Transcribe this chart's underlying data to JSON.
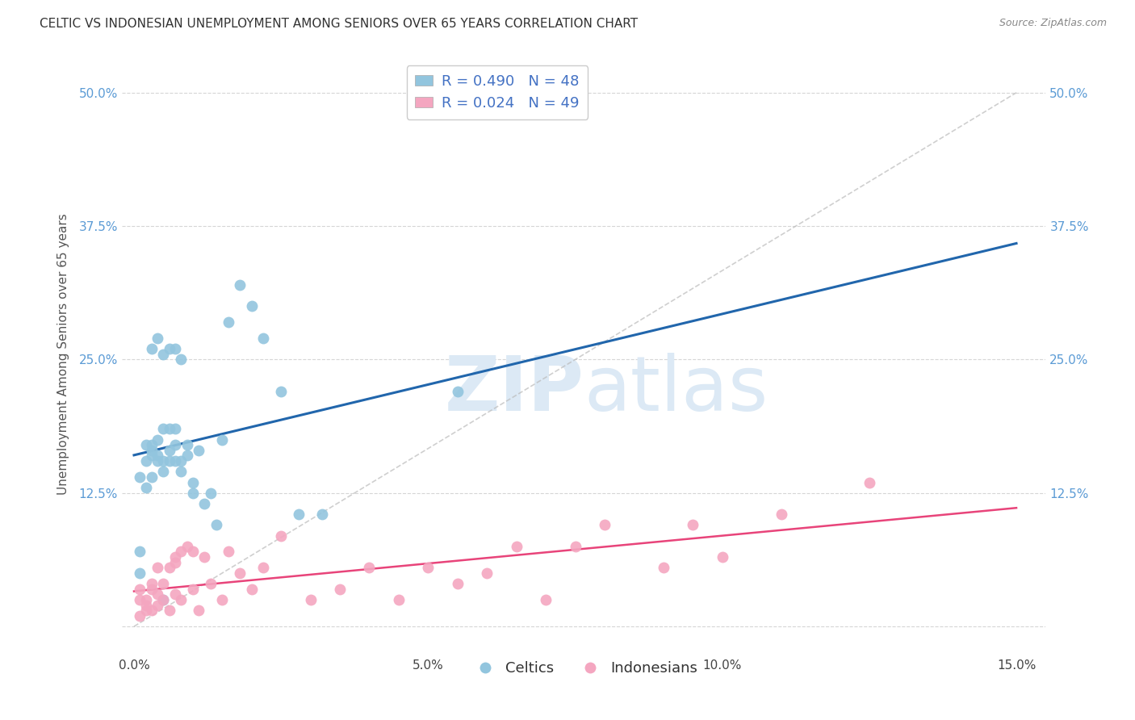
{
  "title": "CELTIC VS INDONESIAN UNEMPLOYMENT AMONG SENIORS OVER 65 YEARS CORRELATION CHART",
  "source": "Source: ZipAtlas.com",
  "ylabel": "Unemployment Among Seniors over 65 years",
  "xlim": [
    -0.002,
    0.155
  ],
  "ylim": [
    -0.025,
    0.535
  ],
  "color_blue": "#92c5de",
  "color_pink": "#f4a6c0",
  "line_blue": "#2166ac",
  "line_pink": "#e8447a",
  "diag_color": "#bbbbbb",
  "watermark_color": "#dce9f5",
  "legend_bottom_1": "Celtics",
  "legend_bottom_2": "Indonesians",
  "celtic_x": [
    0.001,
    0.001,
    0.001,
    0.002,
    0.002,
    0.002,
    0.003,
    0.003,
    0.003,
    0.003,
    0.003,
    0.004,
    0.004,
    0.004,
    0.004,
    0.005,
    0.005,
    0.005,
    0.005,
    0.005,
    0.006,
    0.006,
    0.006,
    0.006,
    0.007,
    0.007,
    0.007,
    0.007,
    0.008,
    0.008,
    0.008,
    0.009,
    0.009,
    0.01,
    0.01,
    0.011,
    0.012,
    0.013,
    0.014,
    0.015,
    0.016,
    0.018,
    0.02,
    0.022,
    0.025,
    0.028,
    0.032,
    0.055
  ],
  "celtic_y": [
    0.05,
    0.07,
    0.14,
    0.13,
    0.155,
    0.17,
    0.14,
    0.16,
    0.165,
    0.17,
    0.26,
    0.155,
    0.16,
    0.175,
    0.27,
    0.145,
    0.155,
    0.255,
    0.185,
    0.025,
    0.155,
    0.165,
    0.26,
    0.185,
    0.26,
    0.155,
    0.17,
    0.185,
    0.145,
    0.155,
    0.25,
    0.16,
    0.17,
    0.125,
    0.135,
    0.165,
    0.115,
    0.125,
    0.095,
    0.175,
    0.285,
    0.32,
    0.3,
    0.27,
    0.22,
    0.105,
    0.105,
    0.22
  ],
  "indonesian_x": [
    0.001,
    0.001,
    0.001,
    0.002,
    0.002,
    0.002,
    0.003,
    0.003,
    0.003,
    0.004,
    0.004,
    0.004,
    0.005,
    0.005,
    0.006,
    0.006,
    0.007,
    0.007,
    0.007,
    0.008,
    0.008,
    0.009,
    0.01,
    0.01,
    0.011,
    0.012,
    0.013,
    0.015,
    0.016,
    0.018,
    0.02,
    0.022,
    0.025,
    0.03,
    0.035,
    0.04,
    0.045,
    0.05,
    0.055,
    0.06,
    0.065,
    0.07,
    0.075,
    0.08,
    0.09,
    0.095,
    0.1,
    0.11,
    0.125
  ],
  "indonesian_y": [
    0.025,
    0.035,
    0.01,
    0.02,
    0.025,
    0.015,
    0.04,
    0.015,
    0.035,
    0.02,
    0.03,
    0.055,
    0.025,
    0.04,
    0.015,
    0.055,
    0.03,
    0.06,
    0.065,
    0.025,
    0.07,
    0.075,
    0.035,
    0.07,
    0.015,
    0.065,
    0.04,
    0.025,
    0.07,
    0.05,
    0.035,
    0.055,
    0.085,
    0.025,
    0.035,
    0.055,
    0.025,
    0.055,
    0.04,
    0.05,
    0.075,
    0.025,
    0.075,
    0.095,
    0.055,
    0.095,
    0.065,
    0.105,
    0.135
  ],
  "x_ticks": [
    0.0,
    0.05,
    0.1,
    0.15
  ],
  "x_tick_labels": [
    "0.0%",
    "5.0%",
    "10.0%",
    "15.0%"
  ],
  "y_ticks": [
    0.0,
    0.125,
    0.25,
    0.375,
    0.5
  ],
  "y_tick_labels": [
    "",
    "12.5%",
    "25.0%",
    "37.5%",
    "50.0%"
  ]
}
